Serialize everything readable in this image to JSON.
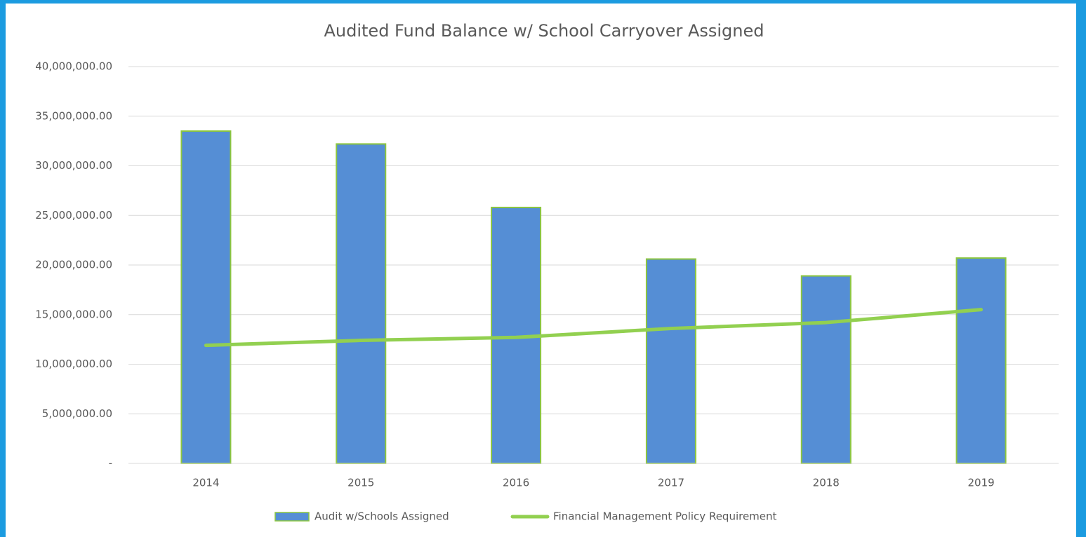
{
  "chart_data": {
    "type": "bar_line",
    "title": "Audited Fund Balance w/ School Carryover Assigned",
    "categories": [
      "2014",
      "2015",
      "2016",
      "2017",
      "2018",
      "2019"
    ],
    "series": [
      {
        "name": "Audit w/Schools Assigned",
        "type": "bar",
        "color": "#558ed5",
        "edge_color": "#8cc63f",
        "values": [
          33500000,
          32200000,
          25800000,
          20600000,
          18900000,
          20700000
        ]
      },
      {
        "name": "Financial Management Policy Requirement",
        "type": "line",
        "color": "#92d050",
        "values": [
          11900000,
          12400000,
          12700000,
          13600000,
          14200000,
          15500000
        ]
      }
    ],
    "ylim": [
      0,
      40000000
    ],
    "yticks": [
      {
        "value": 0,
        "label": "-"
      },
      {
        "value": 5000000,
        "label": "5,000,000.00"
      },
      {
        "value": 10000000,
        "label": "10,000,000.00"
      },
      {
        "value": 15000000,
        "label": "15,000,000.00"
      },
      {
        "value": 20000000,
        "label": "20,000,000.00"
      },
      {
        "value": 25000000,
        "label": "25,000,000.00"
      },
      {
        "value": 30000000,
        "label": "30,000,000.00"
      },
      {
        "value": 35000000,
        "label": "35,000,000.00"
      },
      {
        "value": 40000000,
        "label": "40,000,000.00"
      }
    ],
    "grid": true,
    "legend": "bottom"
  }
}
